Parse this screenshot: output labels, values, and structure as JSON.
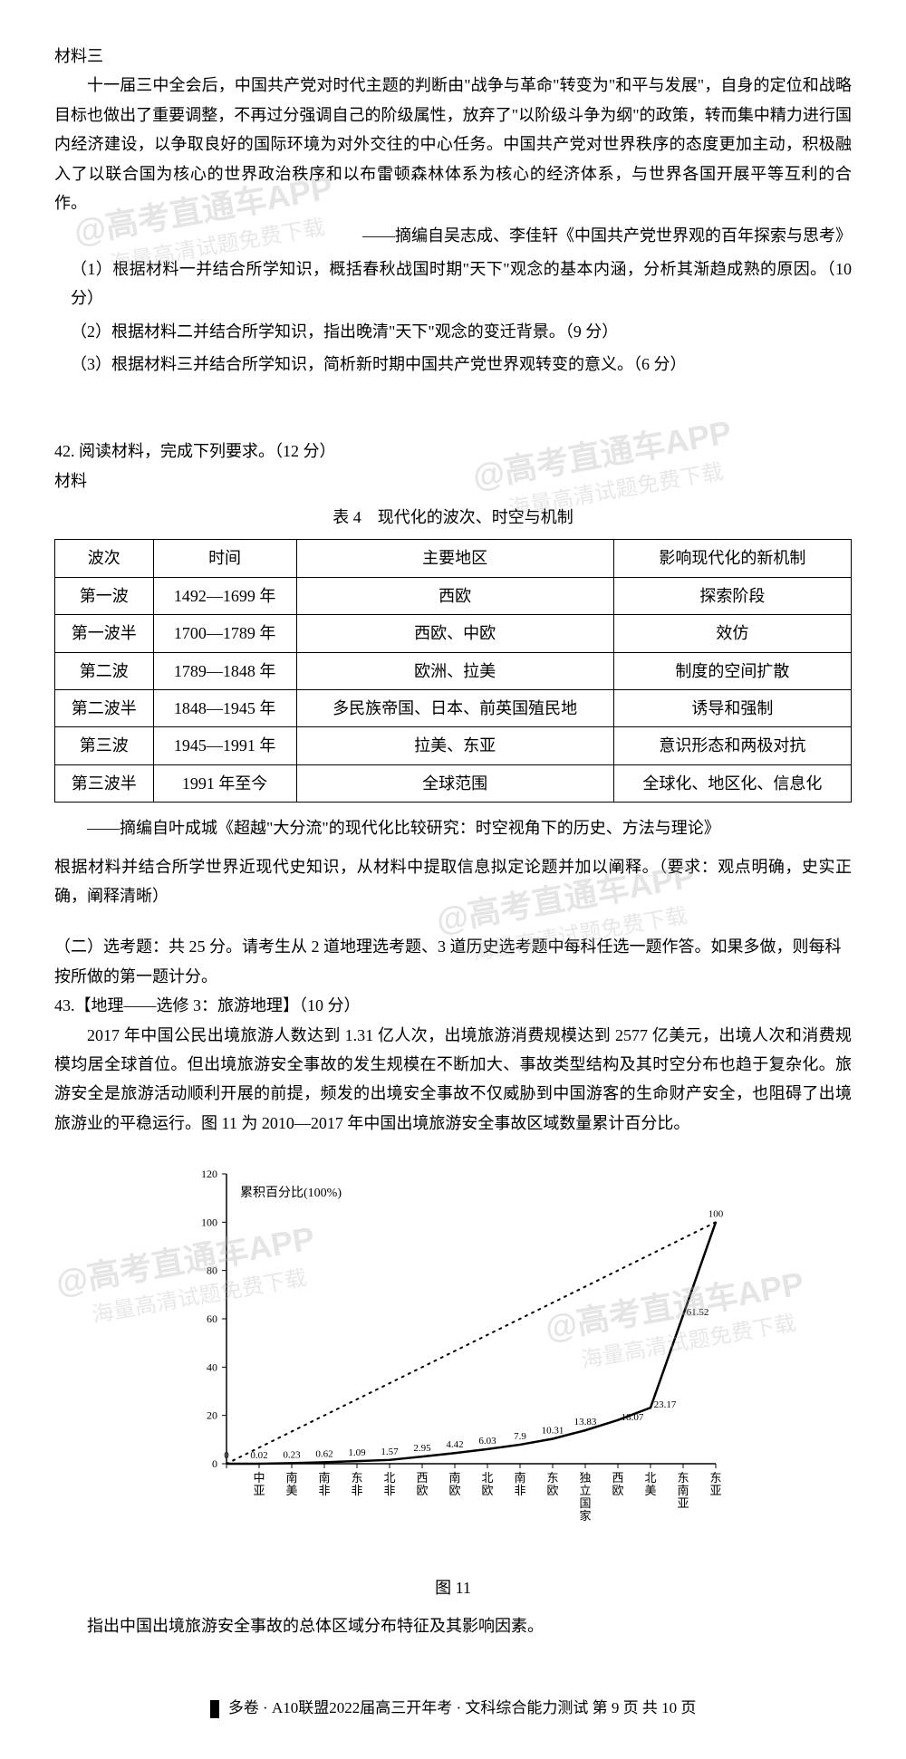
{
  "material3": {
    "heading": "材料三",
    "para": "十一届三中全会后，中国共产党对时代主题的判断由\"战争与革命\"转变为\"和平与发展\"，自身的定位和战略目标也做出了重要调整，不再过分强调自己的阶级属性，放弃了\"以阶级斗争为纲\"的政策，转而集中精力进行国内经济建设，以争取良好的国际环境为对外交往的中心任务。中国共产党对世界秩序的态度更加主动，积极融入了以联合国为核心的世界政治秩序和以布雷顿森林体系为核心的经济体系，与世界各国开展平等互利的合作。",
    "source": "——摘编自吴志成、李佳轩《中国共产党世界观的百年探索与思考》",
    "q1": "（1）根据材料一并结合所学知识，概括春秋战国时期\"天下\"观念的基本内涵，分析其渐趋成熟的原因。（10 分）",
    "q2": "（2）根据材料二并结合所学知识，指出晚清\"天下\"观念的变迁背景。（9 分）",
    "q3": "（3）根据材料三并结合所学知识，简析新时期中国共产党世界观转变的意义。（6 分）"
  },
  "q42": {
    "heading": "42. 阅读材料，完成下列要求。（12 分）",
    "subheading": "材料",
    "tableTitle": "表 4　现代化的波次、时空与机制",
    "headers": [
      "波次",
      "时间",
      "主要地区",
      "影响现代化的新机制"
    ],
    "rows": [
      [
        "第一波",
        "1492—1699 年",
        "西欧",
        "探索阶段"
      ],
      [
        "第一波半",
        "1700—1789 年",
        "西欧、中欧",
        "效仿"
      ],
      [
        "第二波",
        "1789—1848 年",
        "欧洲、拉美",
        "制度的空间扩散"
      ],
      [
        "第二波半",
        "1848—1945 年",
        "多民族帝国、日本、前英国殖民地",
        "诱导和强制"
      ],
      [
        "第三波",
        "1945—1991 年",
        "拉美、东亚",
        "意识形态和两极对抗"
      ],
      [
        "第三波半",
        "1991 年至今",
        "全球范围",
        "全球化、地区化、信息化"
      ]
    ],
    "source": "——摘编自叶成城《超越\"大分流\"的现代化比较研究：时空视角下的历史、方法与理论》",
    "instruction": "根据材料并结合所学世界近现代史知识，从材料中提取信息拟定论题并加以阐释。（要求：观点明确，史实正确，阐释清晰）"
  },
  "section2": {
    "heading": "（二）选考题：共 25 分。请考生从 2 道地理选考题、3 道历史选考题中每科任选一题作答。如果多做，则每科按所做的第一题计分。"
  },
  "q43": {
    "heading": "43.【地理——选修 3：旅游地理】（10 分）",
    "para": "2017 年中国公民出境旅游人数达到 1.31 亿人次，出境旅游消费规模达到 2577 亿美元，出境人次和消费规模均居全球首位。但出境旅游安全事故的发生规模在不断加大、事故类型结构及其时空分布也趋于复杂化。旅游安全是旅游活动顺利开展的前提，频发的出境安全事故不仅威胁到中国游客的生命财产安全，也阻碍了出境旅游业的平稳运行。图 11 为 2010—2017 年中国出境旅游安全事故区域数量累计百分比。",
    "caption": "图 11",
    "finalQ": "指出中国出境旅游安全事故的总体区域分布特征及其影响因素。"
  },
  "chart": {
    "yLabel": "累积百分比(100%)",
    "yTicks": [
      0,
      20,
      40,
      60,
      80,
      100,
      120
    ],
    "xLabels": [
      "中亚",
      "南美",
      "南非",
      "东非",
      "北非",
      "西欧",
      "南欧",
      "北欧",
      "南非",
      "东欧",
      "独立国家",
      "西欧",
      "北美",
      "东南亚",
      "东亚"
    ],
    "categories": [
      "中亚",
      "南美",
      "南非",
      "东非",
      "北非",
      "西欧",
      "南欧",
      "北欧",
      "南非",
      "东欧",
      "独立国家",
      "西欧",
      "北美",
      "东南亚",
      "东亚"
    ],
    "values": [
      0,
      0.02,
      0.23,
      0.62,
      1.09,
      1.57,
      2.95,
      4.42,
      6.03,
      7.9,
      10.31,
      13.83,
      18.07,
      23.17,
      61.52,
      100
    ],
    "valueLabels": [
      "0",
      "0.02",
      "0.23",
      "0.62",
      "1.09",
      "1.57",
      "2.95",
      "4.42",
      "6.03",
      "7.9",
      "10.31",
      "13.83",
      "18.07",
      "23.17",
      "61.52",
      "100"
    ],
    "lineColor": "#000000",
    "dottedColor": "#000000",
    "background": "#ffffff",
    "axisColor": "#000000",
    "fontSize": 12
  },
  "footer": "多卷 · A10联盟2022届高三开年考 · 文科综合能力测试  第 9 页  共 10 页",
  "watermarks": {
    "main": "@高考直通车APP",
    "sub": "海量高清试题免费下载"
  }
}
